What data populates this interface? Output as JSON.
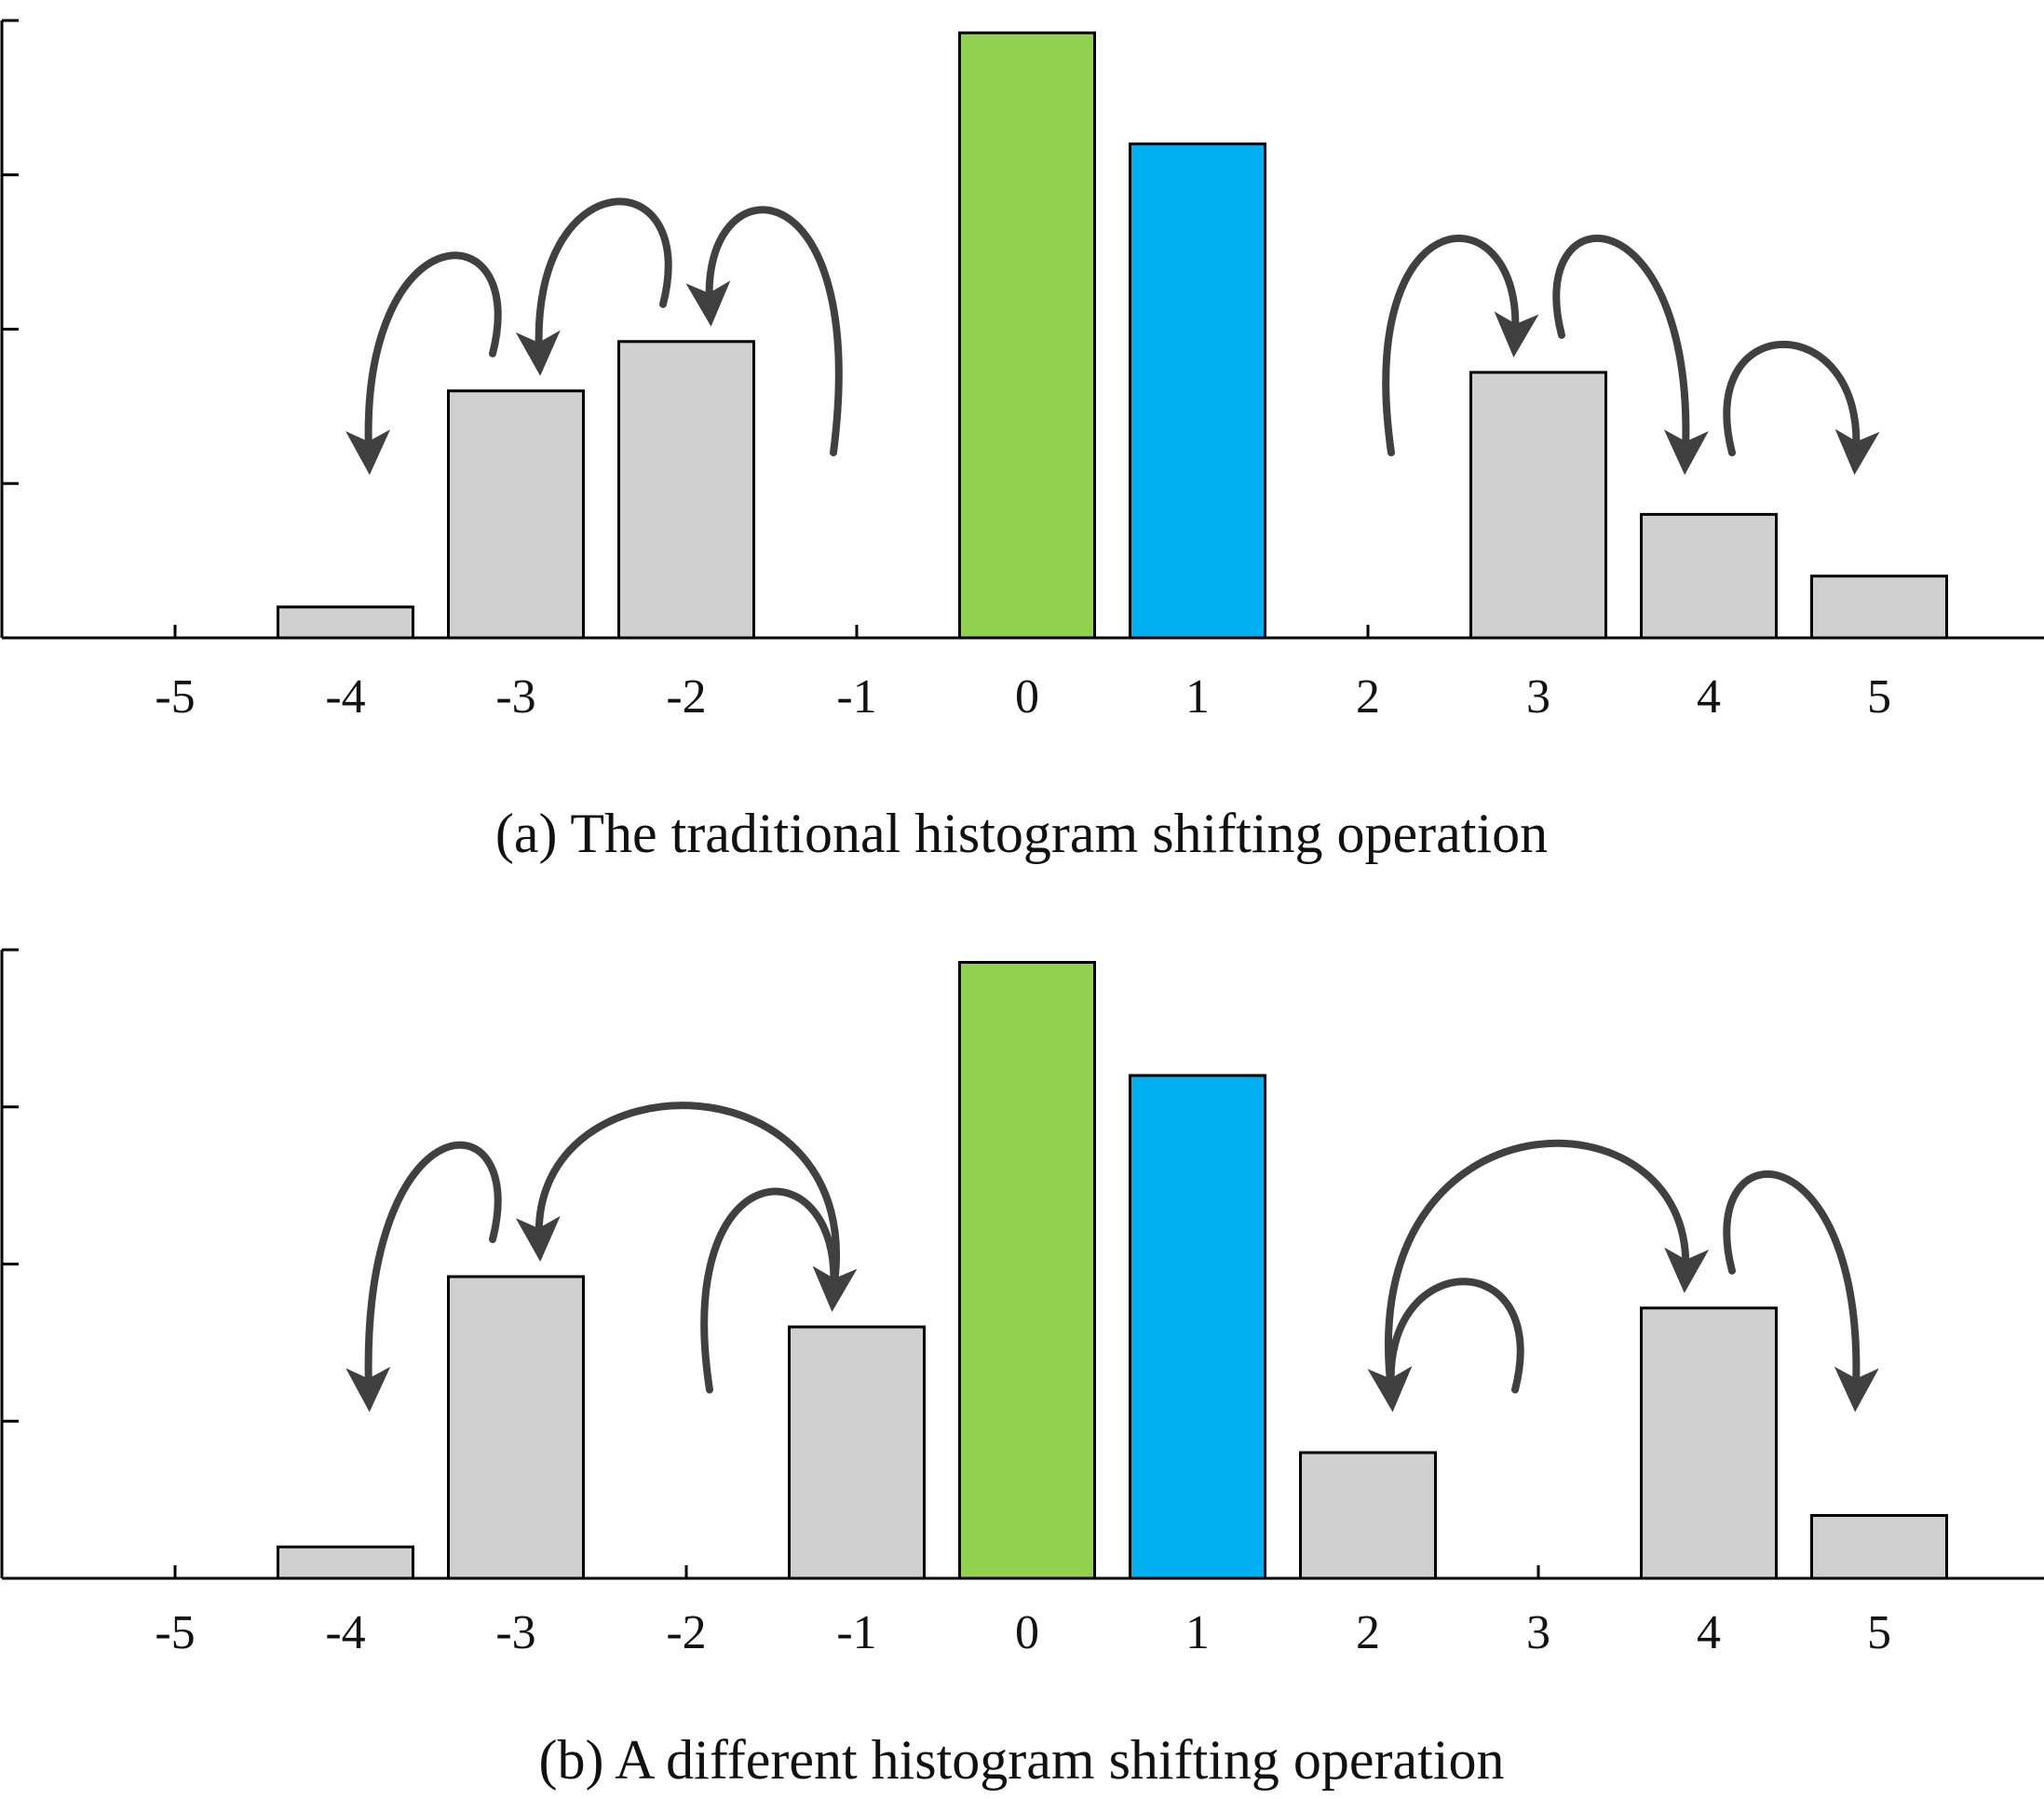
{
  "chart_data": [
    {
      "type": "bar",
      "panel": "a",
      "title": "(a) The traditional histogram shifting operation",
      "categories": [
        "-5",
        "-4",
        "-3",
        "-2",
        "-1",
        "0",
        "1",
        "2",
        "3",
        "4",
        "5"
      ],
      "values": [
        0,
        0.5,
        4.0,
        4.8,
        0,
        9.8,
        8.0,
        0,
        4.3,
        2.0,
        1.0
      ],
      "highlight": {
        "0": "#92D050",
        "1": "#00B0F0"
      },
      "default_color": "#D0D0D0",
      "ylim": [
        0,
        10
      ],
      "yticks_count": 4,
      "shift_arrows": [
        {
          "from": -1,
          "to": -2
        },
        {
          "from": -2,
          "to": -3
        },
        {
          "from": -3,
          "to": -4
        },
        {
          "from": 2,
          "to": 3
        },
        {
          "from": 3,
          "to": 4
        },
        {
          "from": 4,
          "to": 5
        }
      ]
    },
    {
      "type": "bar",
      "panel": "b",
      "title": "(b) A different histogram shifting operation",
      "categories": [
        "-5",
        "-4",
        "-3",
        "-2",
        "-1",
        "0",
        "1",
        "2",
        "3",
        "4",
        "5"
      ],
      "values": [
        0,
        0.5,
        4.8,
        0,
        4.0,
        9.8,
        8.0,
        2.0,
        0,
        4.3,
        1.0
      ],
      "highlight": {
        "0": "#92D050",
        "1": "#00B0F0"
      },
      "default_color": "#D0D0D0",
      "ylim": [
        0,
        10
      ],
      "yticks_count": 4,
      "shift_arrows": [
        {
          "from": -3,
          "to": -4
        },
        {
          "from": -1,
          "to": -3
        },
        {
          "from": -2,
          "to": -1
        },
        {
          "from": 2,
          "to": 4
        },
        {
          "from": 3,
          "to": 2
        },
        {
          "from": 4,
          "to": 5
        }
      ]
    }
  ]
}
